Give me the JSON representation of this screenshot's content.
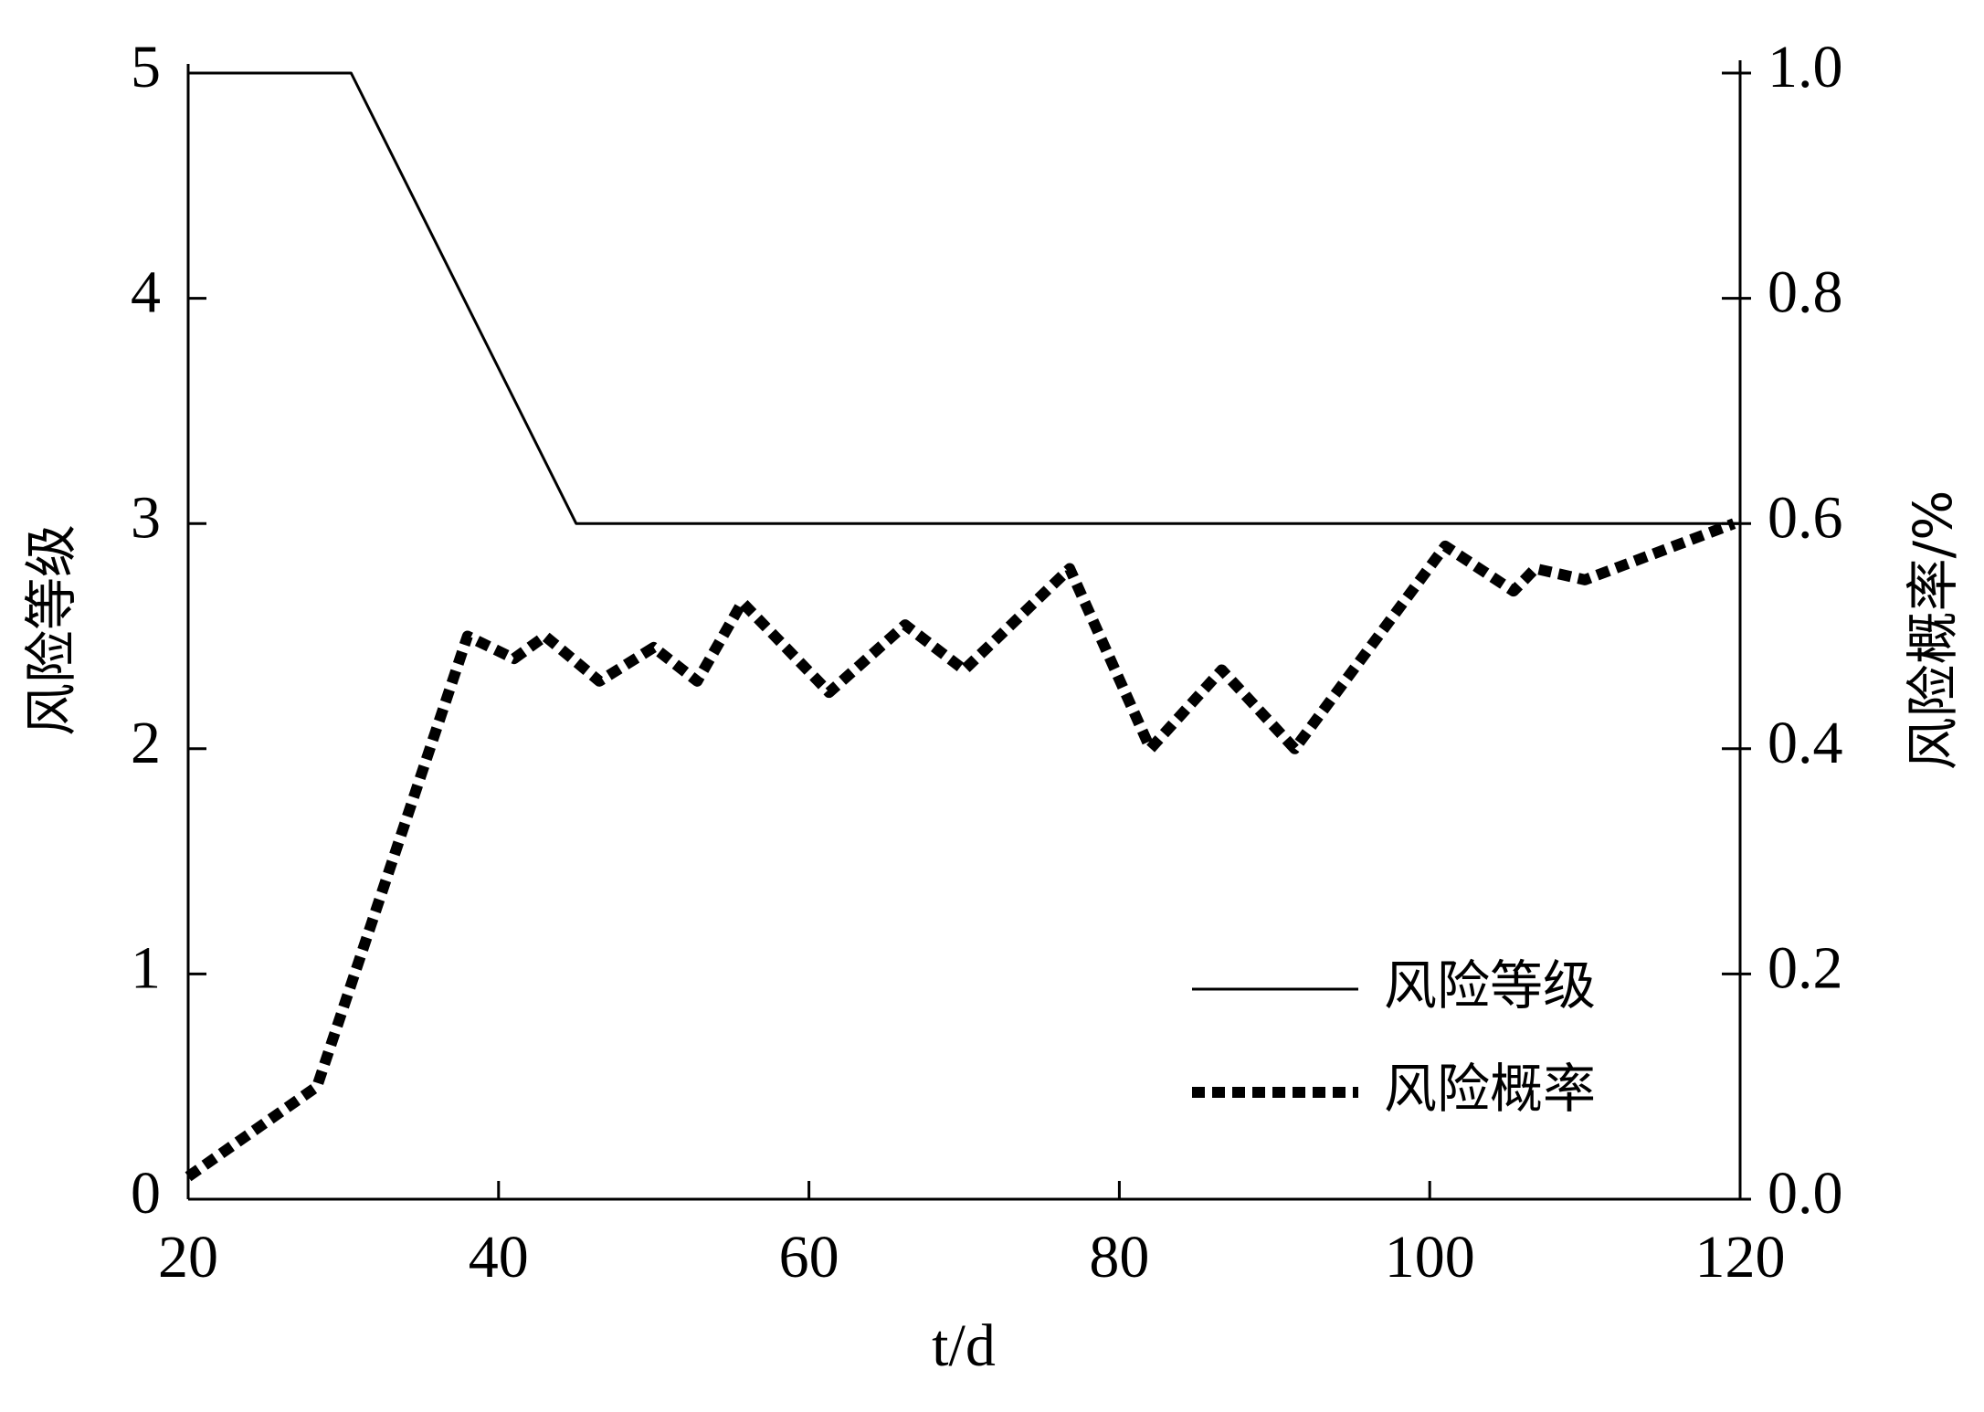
{
  "chart_data": {
    "type": "line",
    "x_label": "t/d",
    "y_label": "风险等级",
    "y2_label": "风险概率/%",
    "xlim": [
      20,
      120
    ],
    "xticks": [
      20,
      40,
      60,
      80,
      100,
      120
    ],
    "ylim": [
      0,
      5
    ],
    "yticks": [
      0,
      1,
      2,
      3,
      4,
      5
    ],
    "y2lim": [
      0,
      1
    ],
    "y2ticks": [
      {
        "value": 0,
        "label": "0.0"
      },
      0.2,
      0.4,
      0.6,
      0.8,
      {
        "value": 1,
        "label": "1.0"
      }
    ],
    "legend": "lower right",
    "series": [
      {
        "name": "风险等级",
        "color": "#000000",
        "style": "solid",
        "x": [
          20,
          30.5,
          45,
          120
        ],
        "values": [
          5,
          5,
          3,
          3
        ]
      },
      {
        "name": "风险概率",
        "color": "#000000",
        "style": "dashed",
        "axis": "y2",
        "x": [
          20,
          28.3,
          38,
          41,
          43,
          46.5,
          50,
          52.8,
          55.7,
          61.3,
          66.2,
          70,
          76.8,
          82,
          86.6,
          91.3,
          101,
          105.4,
          106.8,
          110,
          119.6
        ],
        "values": [
          0.02,
          0.1,
          0.5,
          0.48,
          0.5,
          0.46,
          0.49,
          0.46,
          0.53,
          0.45,
          0.51,
          0.47,
          0.56,
          0.4,
          0.47,
          0.4,
          0.58,
          0.54,
          0.56,
          0.55,
          0.6
        ]
      }
    ]
  }
}
